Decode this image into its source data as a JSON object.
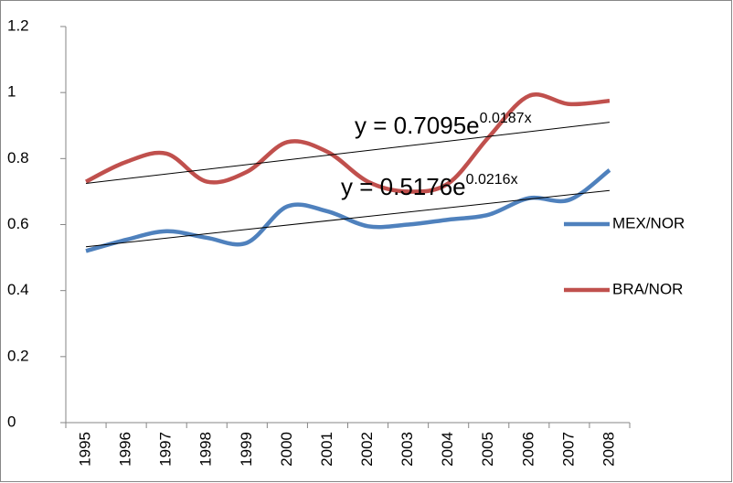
{
  "chart_data": {
    "type": "line",
    "categories": [
      "1995",
      "1996",
      "1997",
      "1998",
      "1999",
      "2000",
      "2001",
      "2002",
      "2003",
      "2004",
      "2005",
      "2006",
      "2007",
      "2008"
    ],
    "series": [
      {
        "name": "MEX/NOR",
        "color": "#4f81bd",
        "values": [
          0.52,
          0.554,
          0.58,
          0.56,
          0.545,
          0.655,
          0.64,
          0.595,
          0.6,
          0.615,
          0.63,
          0.68,
          0.675,
          0.765
        ]
      },
      {
        "name": "BRA/NOR",
        "color": "#c0504d",
        "values": [
          0.73,
          0.79,
          0.815,
          0.73,
          0.76,
          0.85,
          0.82,
          0.73,
          0.7,
          0.725,
          0.865,
          0.99,
          0.965,
          0.975
        ]
      }
    ],
    "ylim": [
      0,
      1.2
    ],
    "yticks": [
      0,
      0.2,
      0.4,
      0.6,
      0.8,
      1,
      1.2
    ],
    "smooth": true,
    "trendline": "exponential",
    "legend": "right",
    "annotations": [
      {
        "text": "y = 0.7095e",
        "superscript": "0.0187x"
      },
      {
        "text": "y = 0.5176e",
        "superscript": "0.0216x"
      }
    ]
  }
}
